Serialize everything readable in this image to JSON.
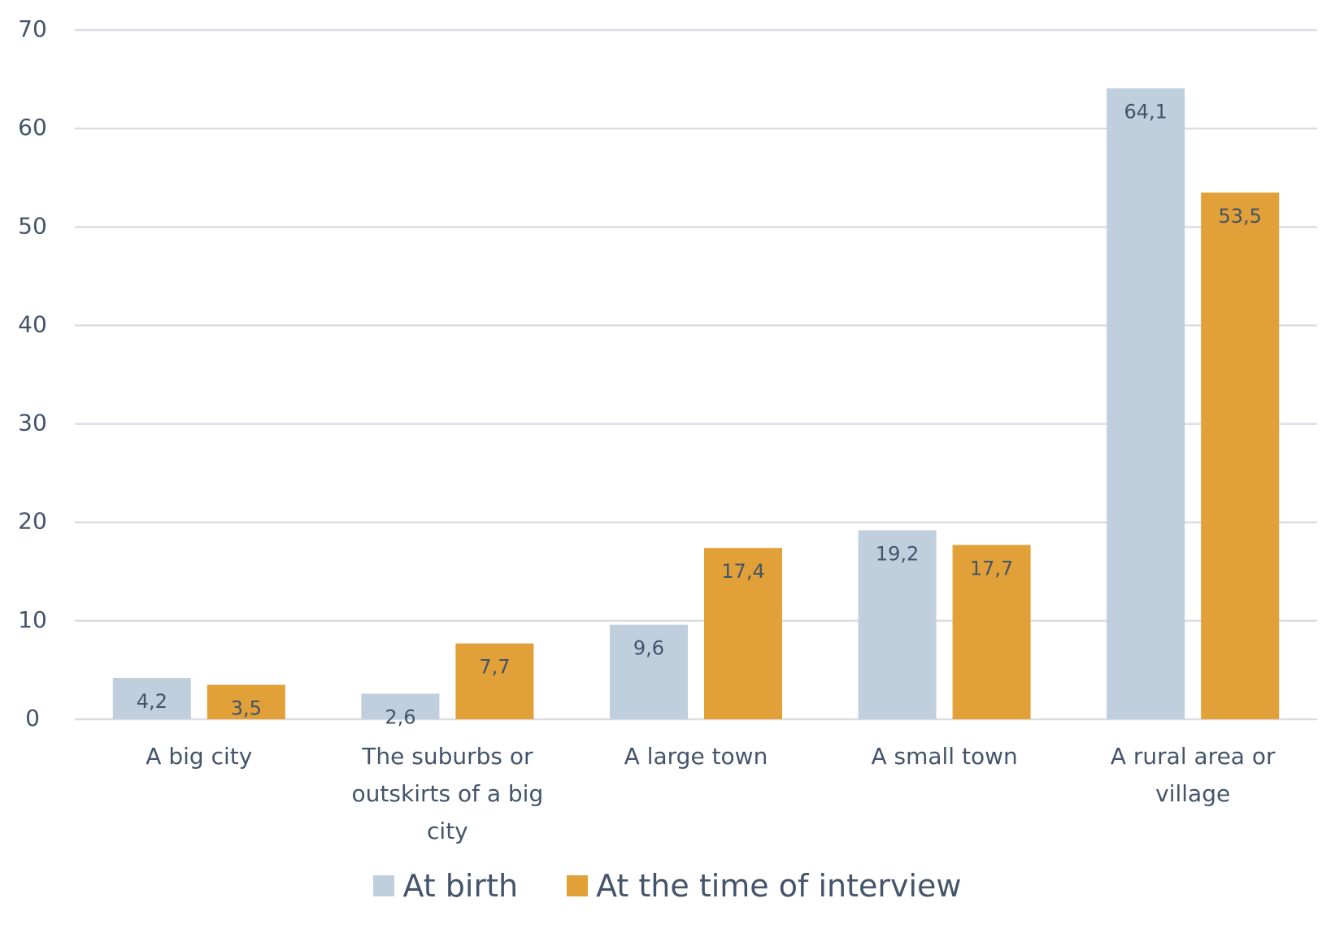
{
  "chart_data": {
    "type": "bar",
    "categories": [
      "A big city",
      "The suburbs or outskirts of a big city",
      "A large town",
      "A small town",
      "A rural area or village"
    ],
    "series": [
      {
        "name": "At birth",
        "color": "#bfcfdd",
        "values": [
          4.2,
          2.6,
          9.6,
          19.2,
          64.1
        ],
        "value_labels": [
          "4,2",
          "2,6",
          "9,6",
          "19,2",
          "64,1"
        ]
      },
      {
        "name": "At the time of interview",
        "color": "#e2a038",
        "values": [
          3.5,
          7.7,
          17.4,
          17.7,
          53.5
        ],
        "value_labels": [
          "3,5",
          "7,7",
          "17,4",
          "17,7",
          "53,5"
        ]
      }
    ],
    "ylim": [
      0,
      70
    ],
    "yticks": [
      0,
      10,
      20,
      30,
      40,
      50,
      60,
      70
    ],
    "grid": true,
    "legend": "bottom"
  }
}
